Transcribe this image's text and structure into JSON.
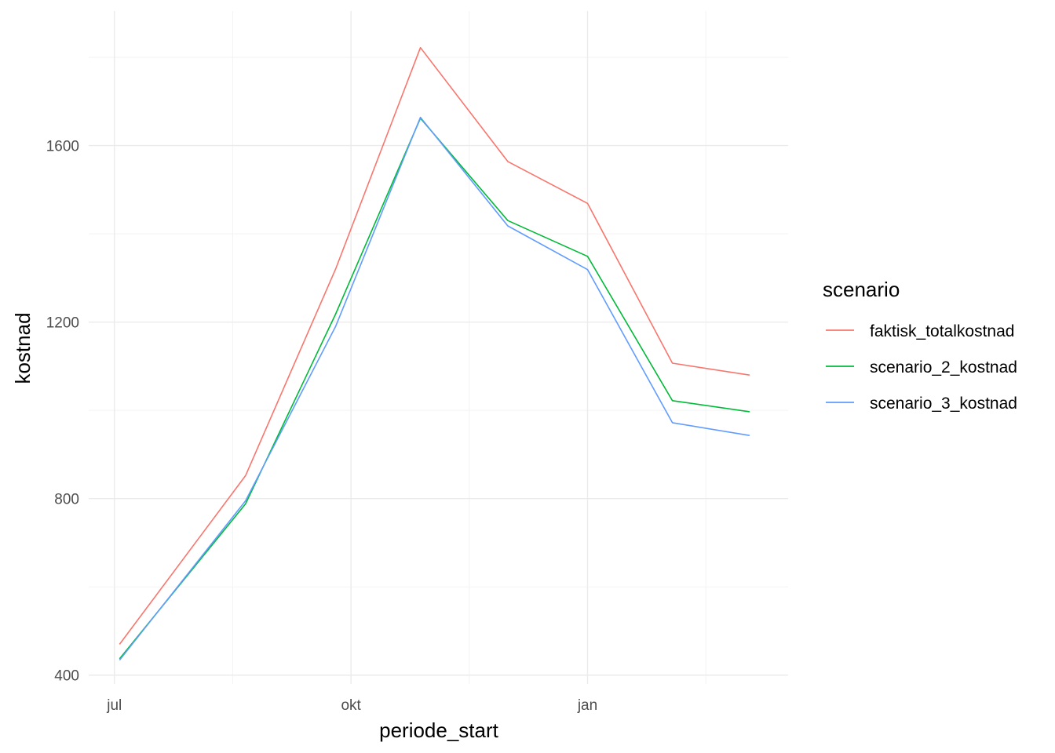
{
  "chart_data": {
    "type": "line",
    "x_type": "date",
    "x": [
      "2023-07-03",
      "2023-08-21",
      "2023-09-25",
      "2023-10-28",
      "2023-12-01",
      "2024-01-01",
      "2024-02-03",
      "2024-03-04"
    ],
    "series": [
      {
        "name": "faktisk_totalkostnad",
        "color": "#F8766D",
        "values": [
          470,
          852,
          1320,
          1822,
          1564,
          1469,
          1107,
          1080
        ]
      },
      {
        "name": "scenario_2_kostnad",
        "color": "#00BA38",
        "values": [
          437,
          788,
          1218,
          1662,
          1430,
          1349,
          1022,
          997
        ]
      },
      {
        "name": "scenario_3_kostnad",
        "color": "#619CFF",
        "values": [
          434,
          795,
          1190,
          1664,
          1418,
          1319,
          972,
          943
        ]
      }
    ],
    "xlabel": "periode_start",
    "ylabel": "kostnad",
    "x_ticks": [
      {
        "date": "2023-07-01",
        "label": "jul"
      },
      {
        "date": "2023-10-01",
        "label": "okt"
      },
      {
        "date": "2024-01-01",
        "label": "jan"
      }
    ],
    "x_minor_ticks": [
      "2023-08-16",
      "2023-11-16",
      "2024-02-16"
    ],
    "y_ticks": [
      400,
      800,
      1200,
      1600
    ],
    "y_minor_ticks": [
      600,
      1000,
      1400,
      1800
    ],
    "xlim": [
      "2023-06-21",
      "2024-03-19"
    ],
    "ylim": [
      380,
      1905
    ],
    "grid": true,
    "legend": {
      "title": "scenario",
      "position": "right"
    }
  }
}
